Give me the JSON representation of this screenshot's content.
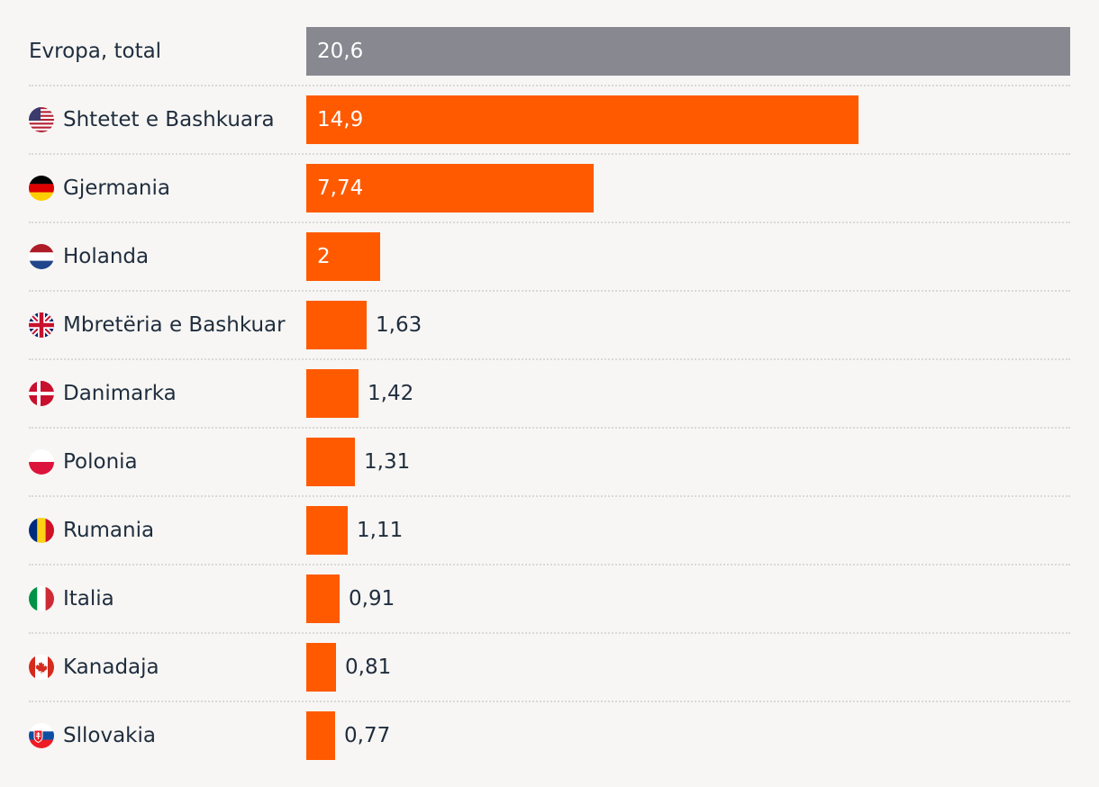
{
  "chart_data": {
    "type": "bar",
    "orientation": "horizontal",
    "categories": [
      "Evropa, total",
      "Shtetet e Bashkuara",
      "Gjermania",
      "Holanda",
      "Mbretëria e Bashkuar",
      "Danimarka",
      "Polonia",
      "Rumania",
      "Italia",
      "Kanadaja",
      "Sllovakia"
    ],
    "values": [
      20.6,
      14.9,
      7.74,
      2,
      1.63,
      1.42,
      1.31,
      1.11,
      0.91,
      0.81,
      0.77
    ],
    "value_labels": [
      "20,6",
      "14,9",
      "7,74",
      "2",
      "1,63",
      "1,42",
      "1,31",
      "1,11",
      "0,91",
      "0,81",
      "0,77"
    ],
    "flags": [
      null,
      "flag-us-icon",
      "flag-de-icon",
      "flag-nl-icon",
      "flag-gb-icon",
      "flag-dk-icon",
      "flag-pl-icon",
      "flag-ro-icon",
      "flag-it-icon",
      "flag-ca-icon",
      "flag-sk-icon"
    ],
    "xlim": [
      0,
      20.6
    ],
    "grid": false,
    "colors": {
      "total": "#878890",
      "country": "#ff5a00",
      "background": "#f7f6f4"
    }
  }
}
